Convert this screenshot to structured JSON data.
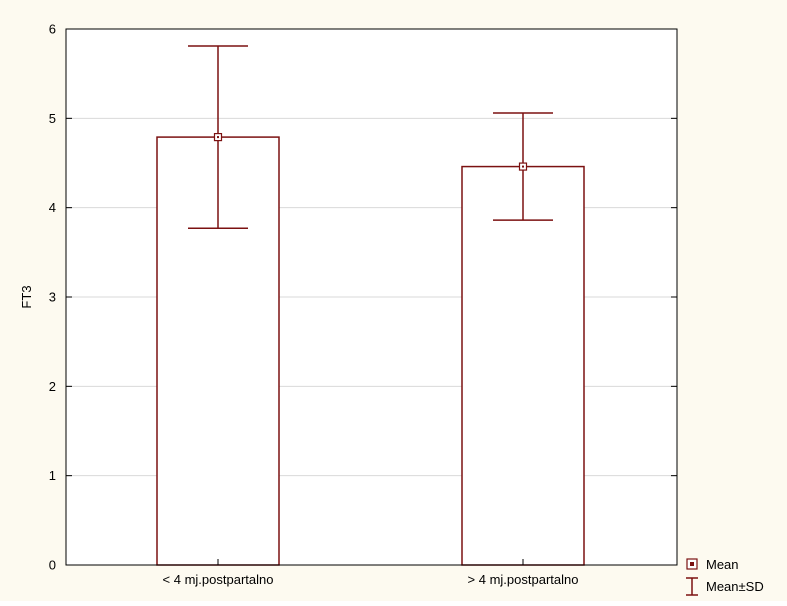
{
  "colors": {
    "background": "#FDFAF0",
    "plot_area": "#FFFFFF",
    "bar_fill": "#FFFFFF",
    "bar_stroke": "#7B1111",
    "error_bar": "#7B1111",
    "mean_marker": "#7B1111",
    "gridline": "#D9D9D9",
    "axis": "#000000"
  },
  "chart_data": {
    "type": "bar",
    "title": "",
    "xlabel": "",
    "ylabel": "FT3",
    "categories": [
      "< 4 mj.postpartalno",
      "> 4 mj.postpartalno"
    ],
    "values": [
      4.79,
      4.46
    ],
    "error_low": [
      3.77,
      3.86
    ],
    "error_high": [
      5.81,
      5.06
    ],
    "ylim": [
      0,
      6
    ],
    "y_ticks": [
      "0",
      "1",
      "2",
      "3",
      "4",
      "5",
      "6"
    ],
    "grid": true,
    "legend_position": "bottom-right",
    "legend": [
      {
        "label": "Mean",
        "icon": "square-dot-marker-icon"
      },
      {
        "label": "Mean±SD",
        "icon": "error-bar-icon"
      }
    ]
  }
}
